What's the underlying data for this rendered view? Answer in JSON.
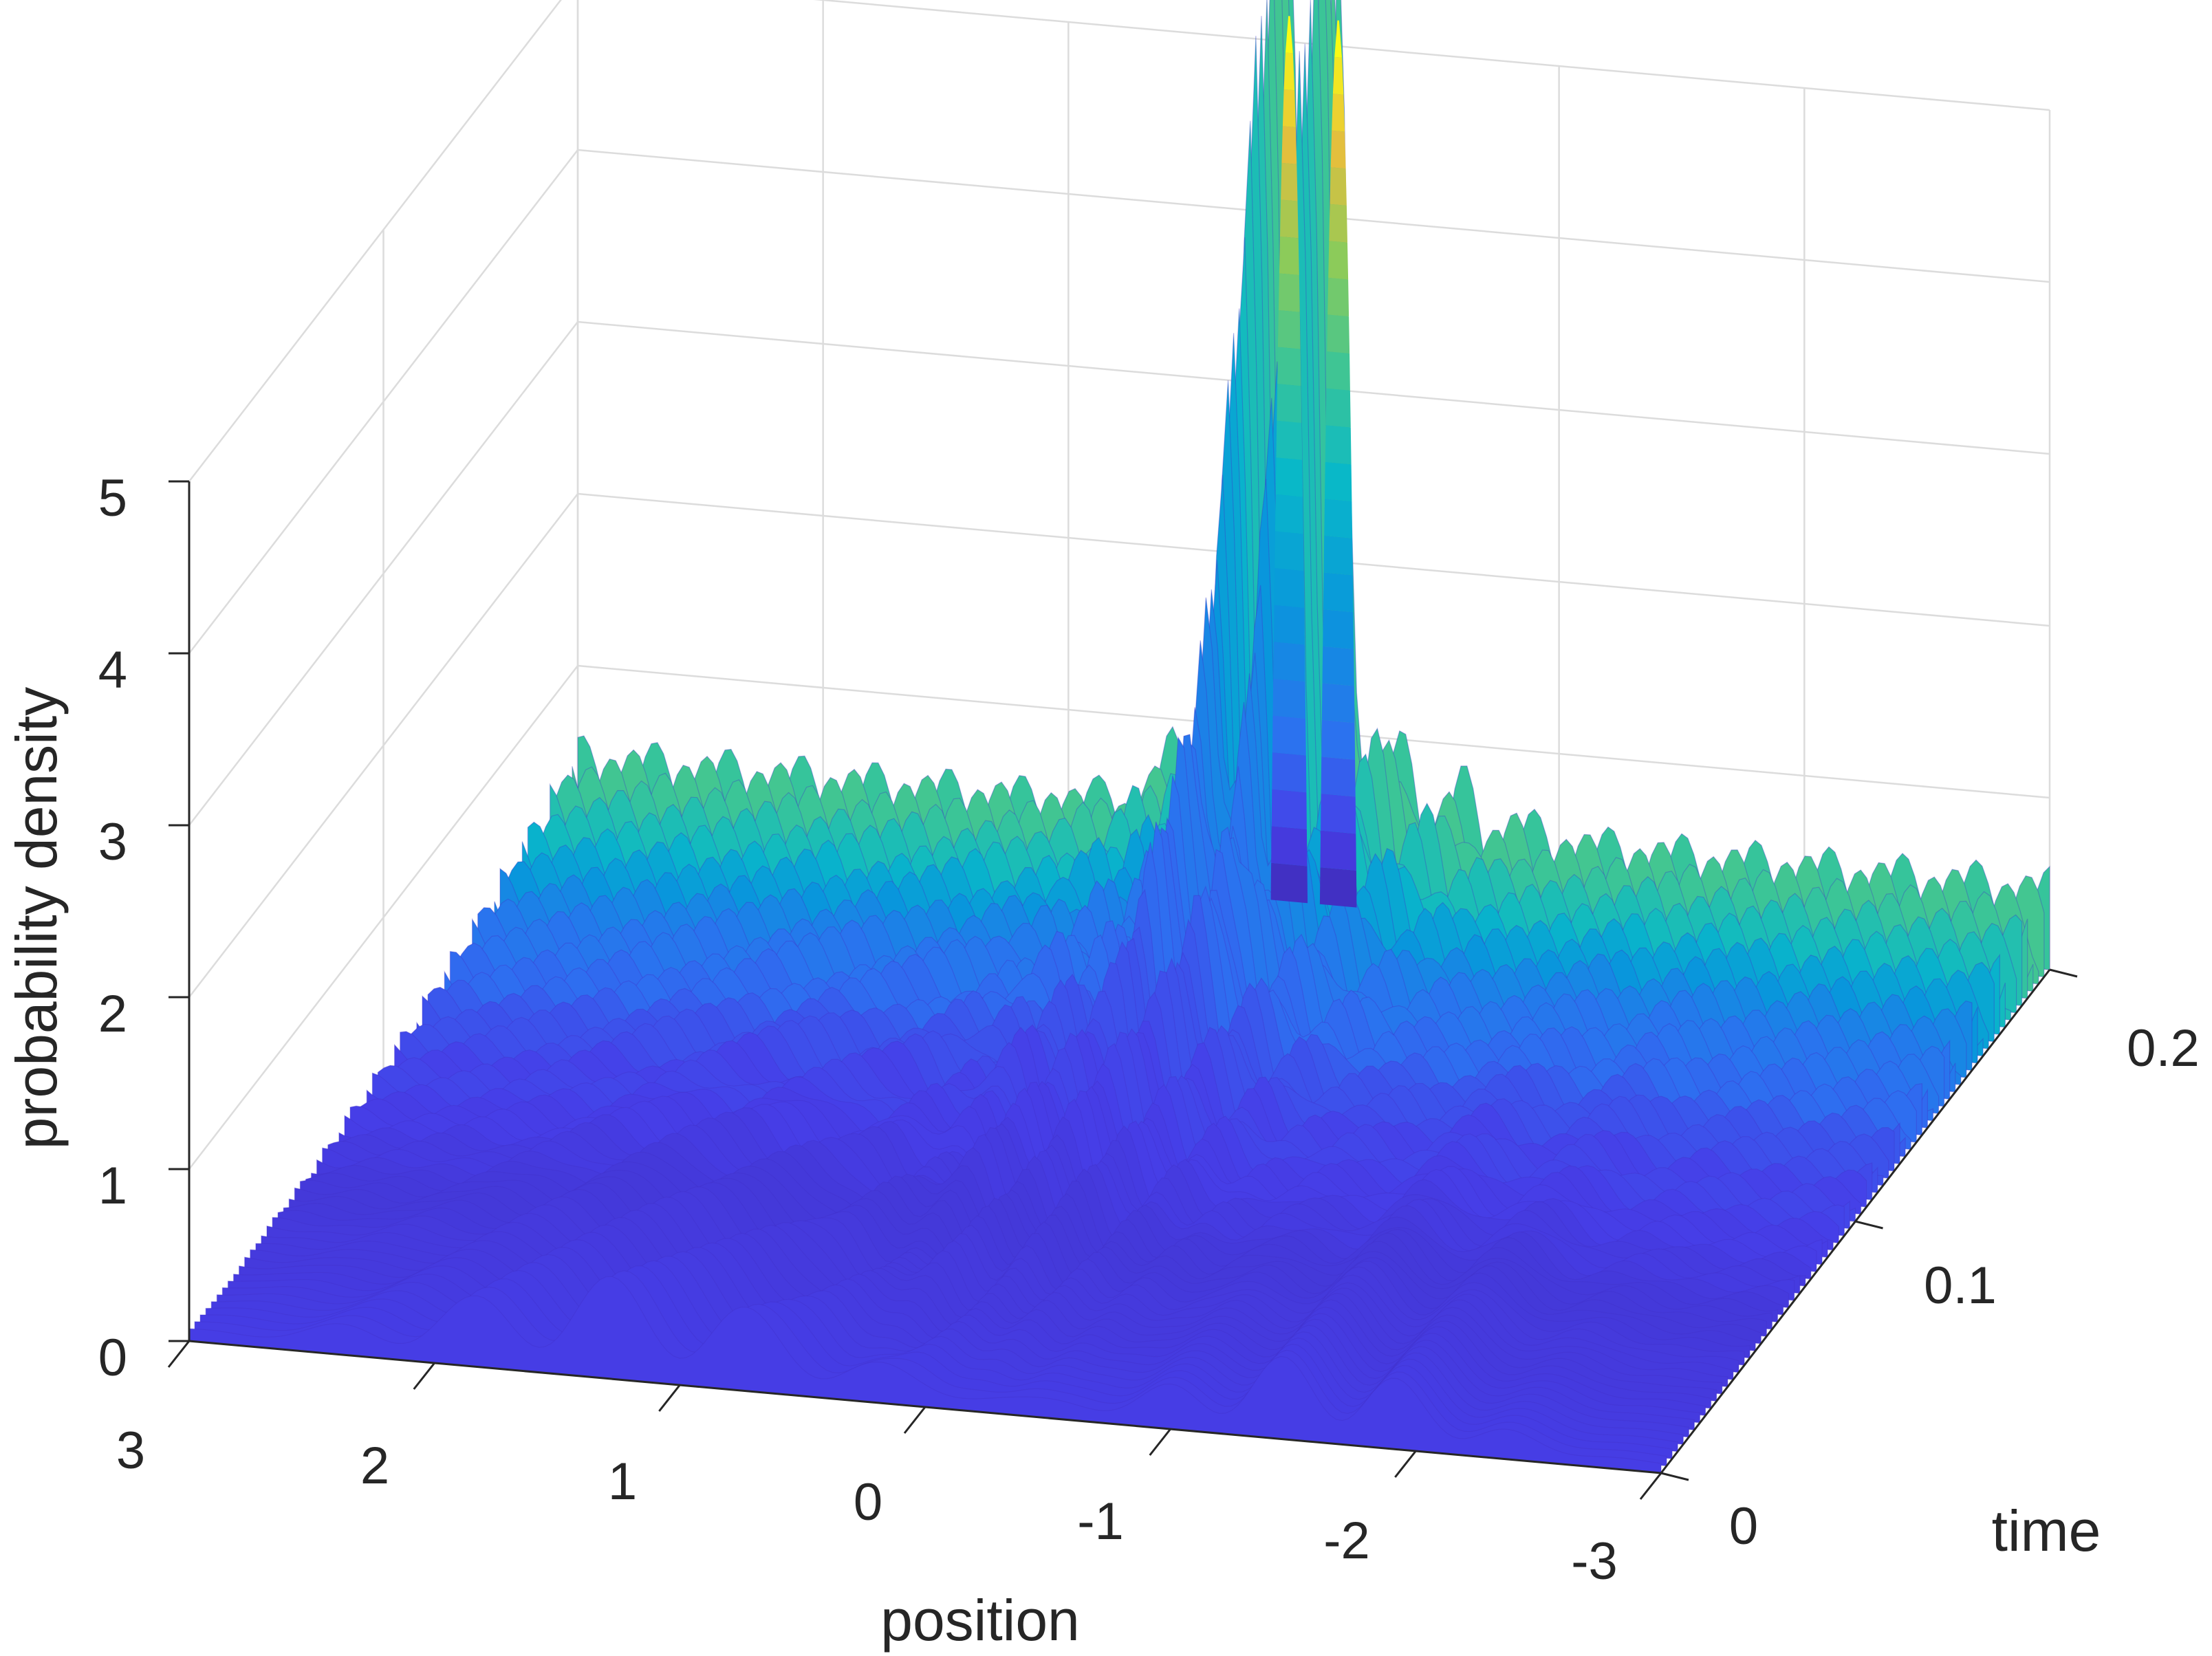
{
  "chart_data": {
    "type": "surface3d",
    "title": "",
    "xlabel": "position",
    "ylabel": "time",
    "zlabel": "probability density",
    "xlim": [
      -3,
      3
    ],
    "ylim": [
      0,
      0.2
    ],
    "zlim": [
      0,
      5
    ],
    "x_ticks": [
      "3",
      "2",
      "1",
      "0",
      "-1",
      "-2",
      "-3"
    ],
    "y_ticks": [
      "0",
      "0.1",
      "0.2"
    ],
    "z_ticks": [
      "0",
      "1",
      "2",
      "3",
      "4",
      "5"
    ],
    "grid": true,
    "colormap": "parula",
    "colors": {
      "low": "#3e26a8",
      "mid_low": "#2d70f0",
      "mid": "#09b8c8",
      "mid_high": "#80cb58",
      "high": "#f9fb15"
    },
    "features": {
      "central_peaks": [
        {
          "position": 0.1,
          "time": 0.2,
          "density": 5.15
        },
        {
          "position": -0.1,
          "time": 0.2,
          "density": 5.15
        }
      ],
      "approx_max_density": 5.15
    }
  }
}
